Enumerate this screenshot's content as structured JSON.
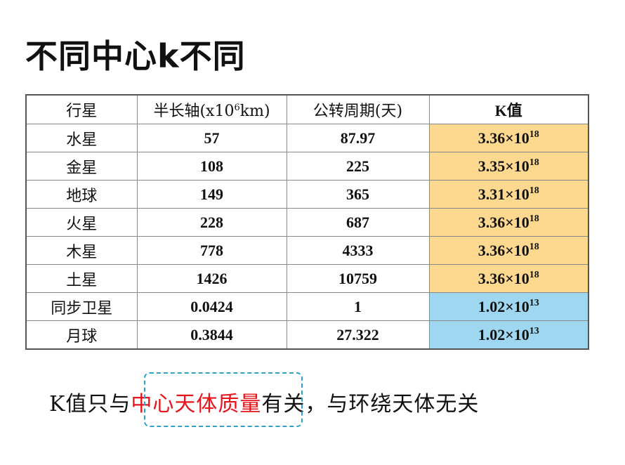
{
  "title": "不同中心k不同",
  "table": {
    "headers": {
      "planet": "行星",
      "axis_prefix": "半长轴(x10",
      "axis_exp": "6",
      "axis_suffix": "km)",
      "period": "公转周期(天)",
      "k": "K值"
    },
    "rows": [
      {
        "name": "水星",
        "axis": "57",
        "period": "87.97",
        "k_base": "3.36×10",
        "k_exp": "18",
        "highlight": "yellow"
      },
      {
        "name": "金星",
        "axis": "108",
        "period": "225",
        "k_base": "3.35×10",
        "k_exp": "18",
        "highlight": "yellow"
      },
      {
        "name": "地球",
        "axis": "149",
        "period": "365",
        "k_base": "3.31×10",
        "k_exp": "18",
        "highlight": "yellow"
      },
      {
        "name": "火星",
        "axis": "228",
        "period": "687",
        "k_base": "3.36×10",
        "k_exp": "18",
        "highlight": "yellow"
      },
      {
        "name": "木星",
        "axis": "778",
        "period": "4333",
        "k_base": "3.36×10",
        "k_exp": "18",
        "highlight": "yellow"
      },
      {
        "name": "土星",
        "axis": "1426",
        "period": "10759",
        "k_base": "3.36×10",
        "k_exp": "18",
        "highlight": "yellow"
      },
      {
        "name": "同步卫星",
        "axis": "0.0424",
        "period": "1",
        "k_base": "1.02×10",
        "k_exp": "13",
        "highlight": "blue"
      },
      {
        "name": "月球",
        "axis": "0.3844",
        "period": "27.322",
        "k_base": "1.02×10",
        "k_exp": "13",
        "highlight": "blue"
      }
    ]
  },
  "caption": {
    "before": "K值只与",
    "highlight": "中心天体质量",
    "after": "有关，与环绕天体无关"
  },
  "colors": {
    "yellow": "#fdd98f",
    "blue": "#9fd7f0",
    "highlight_text": "#e8141b",
    "dash_box": "#2ea3c7"
  }
}
